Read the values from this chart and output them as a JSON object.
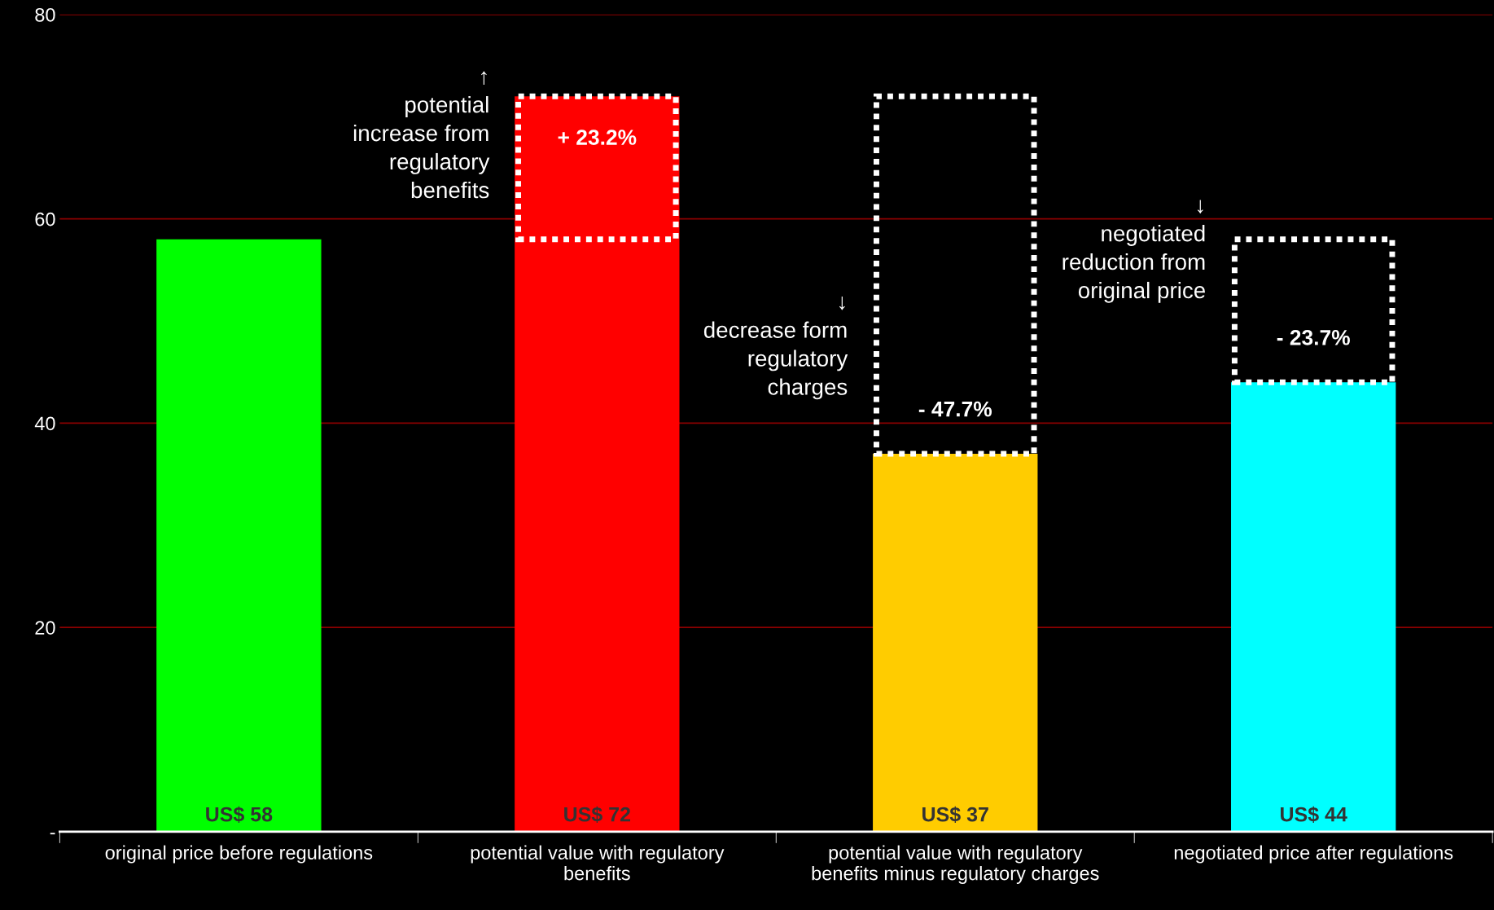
{
  "chart_data": {
    "type": "bar",
    "categories": [
      "original price before regulations",
      "potential value with regulatory\nbenefits",
      "potential value with regulatory\nbenefits minus regulatory charges",
      "negotiated price after regulations"
    ],
    "values": [
      58,
      72,
      37,
      44
    ],
    "colors": [
      "#00ff00",
      "#ff0000",
      "#ffcc00",
      "#00ffff"
    ],
    "value_labels": [
      "US$ 58",
      "US$ 72",
      "US$ 37",
      "US$ 44"
    ],
    "ylim": [
      0,
      80
    ],
    "yticks": [
      {
        "value": 0,
        "label": "-"
      },
      20,
      40,
      60,
      80
    ],
    "grid": "y",
    "annotations": [
      "+ 23.2%",
      "- 47.7%",
      "- 23.7%",
      "↑\npotential\nincrease from\nregulatory\nbenefits",
      "↓\ndecrease form\nregulatory\ncharges",
      "↓\nnegotiated\nreduction from\noriginal price"
    ]
  }
}
